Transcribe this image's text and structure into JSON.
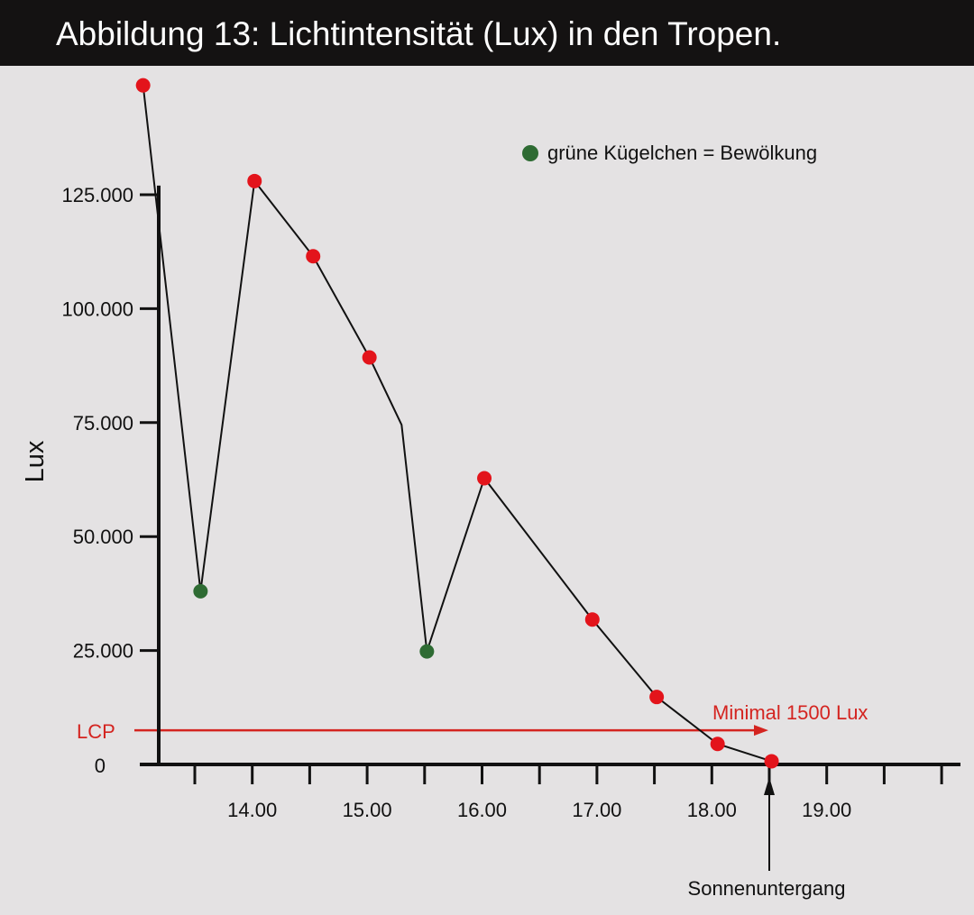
{
  "title": "Abbildung 13: Lichtintensität (Lux) in den Tropen.",
  "colors": {
    "background": "#e4e2e3",
    "title_bar": "#141212",
    "sunny_point": "#e3141b",
    "cloud_point": "#2e6b33",
    "lcp": "#d42420",
    "axis": "#111111"
  },
  "chart_data": {
    "type": "line",
    "title": "Abbildung 13: Lichtintensität (Lux) in den Tropen.",
    "ylabel": "Lux",
    "xlabel": "",
    "xlim": [
      13.0,
      20.0
    ],
    "ylim": [
      0,
      127000
    ],
    "y_ticks": [
      0,
      25000,
      50000,
      75000,
      100000,
      125000
    ],
    "y_tick_labels": [
      "0",
      "25.000",
      "50.000",
      "75.000",
      "100.000",
      "125.000"
    ],
    "x_ticks": [
      13.5,
      14.0,
      14.5,
      15.0,
      15.5,
      16.0,
      16.5,
      17.0,
      17.5,
      18.0,
      18.5,
      19.0,
      19.5,
      20.0
    ],
    "x_tick_labels": [
      {
        "x": 14.0,
        "label": "14.00"
      },
      {
        "x": 15.0,
        "label": "15.00"
      },
      {
        "x": 16.0,
        "label": "16.00"
      },
      {
        "x": 17.0,
        "label": "17.00"
      },
      {
        "x": 18.0,
        "label": "18.00"
      },
      {
        "x": 19.0,
        "label": "19.00"
      }
    ],
    "grid": false,
    "legend": {
      "label": "grüne Kügelchen = Bewölkung",
      "position": "top-right"
    },
    "series": [
      {
        "x": [
          13.05,
          13.55,
          14.02,
          14.53,
          15.02,
          15.3,
          15.52,
          16.02,
          16.96,
          17.52,
          18.05,
          18.52
        ],
        "y": [
          149000,
          38000,
          128000,
          111500,
          89300,
          74500,
          24800,
          62800,
          31800,
          14800,
          4500,
          700
        ],
        "markers": [
          "sunny",
          "cloud",
          "sunny",
          "sunny",
          "sunny",
          "none",
          "cloud",
          "sunny",
          "sunny",
          "sunny",
          "sunny",
          "sunny"
        ]
      }
    ],
    "annotations": [
      {
        "text": "LCP",
        "y": 7500
      },
      {
        "text": "Minimal 1500 Lux",
        "y": 7500
      },
      {
        "text": "Sonnenuntergang",
        "x": 18.5
      }
    ]
  }
}
